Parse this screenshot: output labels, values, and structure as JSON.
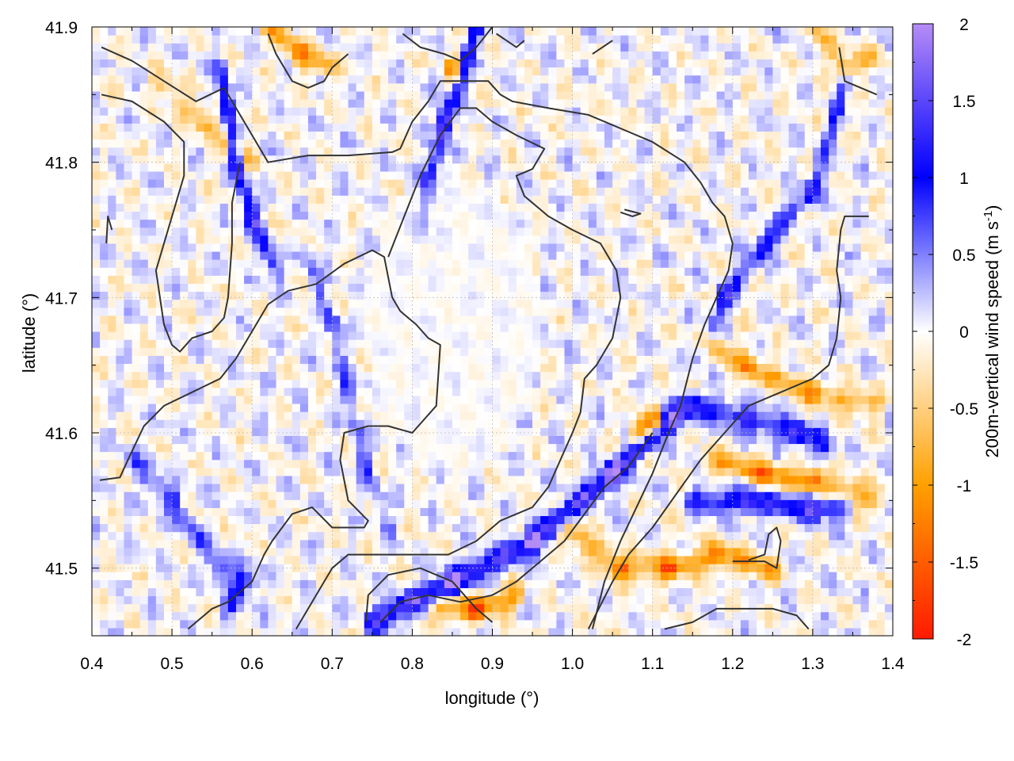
{
  "chart_data": {
    "type": "heatmap",
    "title": "",
    "xlabel": "longitude (°)",
    "ylabel": "latitude (°)",
    "colorbar_label_main": "200m-vertical wind speed (m s",
    "colorbar_label_sup": "-1",
    "colorbar_label_close": ")",
    "xlim": [
      0.4,
      1.4
    ],
    "ylim": [
      41.45,
      41.9
    ],
    "x_ticks": [
      0.4,
      0.5,
      0.6,
      0.7,
      0.8,
      0.9,
      1.0,
      1.1,
      1.2,
      1.3,
      1.4
    ],
    "x_tick_labels": [
      "0.4",
      "0.5",
      "0.6",
      "0.7",
      "0.8",
      "0.9",
      "1.0",
      "1.1",
      "1.2",
      "1.3",
      "1.4"
    ],
    "y_ticks": [
      41.5,
      41.6,
      41.7,
      41.8,
      41.9
    ],
    "y_tick_labels": [
      "41.5",
      "41.6",
      "41.7",
      "41.8",
      "41.9"
    ],
    "colorbar_range": [
      -2,
      2
    ],
    "colorbar_ticks": [
      2,
      1.5,
      1,
      0.5,
      0,
      -0.5,
      -1,
      -1.5,
      -2
    ],
    "colorbar_tick_labels": [
      "2",
      "1.5",
      "1",
      "0.5",
      "0",
      "-0.5",
      "-1",
      "-1.5",
      "-2"
    ],
    "colormap": [
      {
        "value": -2,
        "color": "#ff1a00"
      },
      {
        "value": -1,
        "color": "#ffa000"
      },
      {
        "value": 0,
        "color": "#ffffff"
      },
      {
        "value": 1,
        "color": "#0000ff"
      },
      {
        "value": 2,
        "color": "#b58cf5"
      }
    ],
    "grid": true,
    "contour_color": "#333333",
    "features": [
      {
        "name": "updraft-band-southeast",
        "value": 1.4,
        "path": [
          [
            0.75,
            41.46
          ],
          [
            0.85,
            41.49
          ],
          [
            0.95,
            41.52
          ],
          [
            1.05,
            41.57
          ],
          [
            1.12,
            41.61
          ],
          [
            1.15,
            41.62
          ]
        ]
      },
      {
        "name": "updraft-band-east",
        "value": 1.0,
        "path": [
          [
            1.15,
            41.55
          ],
          [
            1.22,
            41.55
          ],
          [
            1.3,
            41.545
          ],
          [
            1.34,
            41.545
          ]
        ]
      },
      {
        "name": "updraft-band-east-2",
        "value": 0.9,
        "path": [
          [
            1.16,
            41.62
          ],
          [
            1.22,
            41.61
          ],
          [
            1.28,
            41.6
          ],
          [
            1.32,
            41.59
          ]
        ]
      },
      {
        "name": "updraft-north-jet",
        "value": 1.2,
        "path": [
          [
            0.88,
            41.9
          ],
          [
            0.86,
            41.86
          ],
          [
            0.84,
            41.83
          ],
          [
            0.82,
            41.78
          ],
          [
            0.81,
            41.75
          ]
        ]
      },
      {
        "name": "updraft-nw-band",
        "value": 1.0,
        "path": [
          [
            0.56,
            41.87
          ],
          [
            0.57,
            41.84
          ],
          [
            0.58,
            41.8
          ],
          [
            0.6,
            41.76
          ],
          [
            0.63,
            41.72
          ]
        ]
      },
      {
        "name": "updraft-ne-band",
        "value": 0.8,
        "path": [
          [
            1.16,
            41.66
          ],
          [
            1.19,
            41.7
          ],
          [
            1.24,
            41.74
          ],
          [
            1.3,
            41.78
          ],
          [
            1.34,
            41.86
          ]
        ]
      },
      {
        "name": "updraft-west",
        "value": 0.6,
        "path": [
          [
            0.45,
            41.58
          ],
          [
            0.5,
            41.55
          ],
          [
            0.56,
            41.5
          ],
          [
            0.6,
            41.49
          ]
        ]
      },
      {
        "name": "updraft-sw-2",
        "value": 0.8,
        "path": [
          [
            0.57,
            41.47
          ],
          [
            0.59,
            41.49
          ]
        ]
      },
      {
        "name": "updraft-west-ridge",
        "value": 0.55,
        "path": [
          [
            0.67,
            41.73
          ],
          [
            0.7,
            41.68
          ],
          [
            0.72,
            41.63
          ],
          [
            0.74,
            41.58
          ],
          [
            0.77,
            41.53
          ]
        ]
      },
      {
        "name": "downdraft-band-southeast",
        "value": -0.9,
        "path": [
          [
            0.99,
            41.53
          ],
          [
            1.06,
            41.5
          ],
          [
            1.12,
            41.5
          ],
          [
            1.18,
            41.51
          ],
          [
            1.25,
            41.5
          ]
        ]
      },
      {
        "name": "downdraft-east",
        "value": -0.9,
        "path": [
          [
            1.17,
            41.58
          ],
          [
            1.24,
            41.57
          ],
          [
            1.3,
            41.565
          ],
          [
            1.38,
            41.55
          ]
        ]
      },
      {
        "name": "downdraft-east-2",
        "value": -0.75,
        "path": [
          [
            1.16,
            41.67
          ],
          [
            1.22,
            41.65
          ],
          [
            1.3,
            41.63
          ],
          [
            1.38,
            41.62
          ]
        ]
      },
      {
        "name": "downdraft-se-strong",
        "value": -1.5,
        "path": [
          [
            1.08,
            41.6
          ],
          [
            1.11,
            41.61
          ]
        ]
      },
      {
        "name": "downdraft-north",
        "value": -0.8,
        "path": [
          [
            0.62,
            41.9
          ],
          [
            0.66,
            41.88
          ],
          [
            0.7,
            41.87
          ]
        ]
      },
      {
        "name": "downdraft-north-2",
        "value": -1.4,
        "path": [
          [
            0.85,
            41.87
          ],
          [
            0.86,
            41.86
          ]
        ]
      },
      {
        "name": "downdraft-ne",
        "value": -0.6,
        "path": [
          [
            1.3,
            41.9
          ],
          [
            1.34,
            41.87
          ],
          [
            1.38,
            41.88
          ]
        ]
      },
      {
        "name": "downdraft-nw",
        "value": -0.55,
        "path": [
          [
            0.48,
            41.86
          ],
          [
            0.54,
            41.83
          ],
          [
            0.6,
            41.8
          ]
        ]
      },
      {
        "name": "downdraft-south",
        "value": -1.0,
        "path": [
          [
            0.83,
            41.47
          ],
          [
            0.88,
            41.47
          ],
          [
            0.93,
            41.48
          ]
        ]
      }
    ],
    "contours": [
      [
        [
          0.412,
          41.885
        ],
        [
          0.45,
          41.875
        ],
        [
          0.49,
          41.86
        ],
        [
          0.53,
          41.845
        ],
        [
          0.565,
          41.855
        ],
        [
          0.58,
          41.84
        ],
        [
          0.61,
          41.81
        ],
        [
          0.62,
          41.8
        ],
        [
          0.67,
          41.805
        ],
        [
          0.72,
          41.805
        ],
        [
          0.775,
          41.8075
        ],
        [
          0.785,
          41.81
        ],
        [
          0.8,
          41.83
        ],
        [
          0.82,
          41.845
        ],
        [
          0.835,
          41.86
        ],
        [
          0.86,
          41.86
        ],
        [
          0.895,
          41.86
        ],
        [
          0.91,
          41.85
        ],
        [
          0.925,
          41.845
        ],
        [
          0.97,
          41.84
        ],
        [
          1.02,
          41.835
        ],
        [
          1.06,
          41.825
        ],
        [
          1.1,
          41.815
        ],
        [
          1.14,
          41.8
        ],
        [
          1.16,
          41.785
        ],
        [
          1.175,
          41.77
        ],
        [
          1.19,
          41.76
        ],
        [
          1.2,
          41.74
        ],
        [
          1.195,
          41.72
        ],
        [
          1.18,
          41.7
        ],
        [
          1.165,
          41.68
        ],
        [
          1.15,
          41.655
        ],
        [
          1.135,
          41.62
        ],
        [
          1.12,
          41.6
        ],
        [
          1.1,
          41.57
        ],
        [
          1.08,
          41.545
        ],
        [
          1.06,
          41.52
        ],
        [
          1.04,
          41.49
        ],
        [
          1.025,
          41.455
        ]
      ],
      [
        [
          0.412,
          41.85
        ],
        [
          0.45,
          41.845
        ],
        [
          0.49,
          41.83
        ],
        [
          0.515,
          41.815
        ],
        [
          0.515,
          41.79
        ],
        [
          0.505,
          41.77
        ],
        [
          0.49,
          41.74
        ],
        [
          0.48,
          41.72
        ],
        [
          0.485,
          41.7
        ],
        [
          0.49,
          41.68
        ],
        [
          0.5,
          41.665
        ],
        [
          0.51,
          41.66
        ],
        [
          0.525,
          41.67
        ],
        [
          0.55,
          41.675
        ],
        [
          0.565,
          41.685
        ],
        [
          0.57,
          41.7
        ],
        [
          0.575,
          41.74
        ],
        [
          0.575,
          41.77
        ],
        [
          0.585,
          41.8
        ]
      ],
      [
        [
          0.41,
          41.565
        ],
        [
          0.435,
          41.567
        ],
        [
          0.445,
          41.58
        ],
        [
          0.465,
          41.605
        ],
        [
          0.49,
          41.62
        ],
        [
          0.525,
          41.63
        ],
        [
          0.56,
          41.64
        ],
        [
          0.58,
          41.655
        ],
        [
          0.6,
          41.675
        ],
        [
          0.62,
          41.695
        ],
        [
          0.645,
          41.705
        ],
        [
          0.68,
          41.71
        ],
        [
          0.715,
          41.725
        ],
        [
          0.75,
          41.735
        ],
        [
          0.765,
          41.73
        ],
        [
          0.775,
          41.7
        ],
        [
          0.785,
          41.69
        ],
        [
          0.805,
          41.68
        ],
        [
          0.82,
          41.67
        ],
        [
          0.835,
          41.665
        ],
        [
          0.83,
          41.62
        ],
        [
          0.8,
          41.6
        ],
        [
          0.77,
          41.605
        ],
        [
          0.745,
          41.605
        ],
        [
          0.715,
          41.6
        ],
        [
          0.71,
          41.58
        ],
        [
          0.72,
          41.55
        ],
        [
          0.745,
          41.535
        ],
        [
          0.74,
          41.53
        ],
        [
          0.7,
          41.53
        ],
        [
          0.675,
          41.545
        ],
        [
          0.65,
          41.54
        ],
        [
          0.625,
          41.52
        ],
        [
          0.615,
          41.51
        ],
        [
          0.6,
          41.49
        ],
        [
          0.57,
          41.475
        ],
        [
          0.55,
          41.47
        ],
        [
          0.52,
          41.455
        ]
      ],
      [
        [
          0.655,
          41.455
        ],
        [
          0.68,
          41.48
        ],
        [
          0.7,
          41.5
        ],
        [
          0.72,
          41.51
        ],
        [
          0.76,
          41.51
        ],
        [
          0.8,
          41.51
        ],
        [
          0.845,
          41.51
        ],
        [
          0.88,
          41.52
        ],
        [
          0.91,
          41.535
        ],
        [
          0.95,
          41.545
        ],
        [
          0.97,
          41.56
        ],
        [
          0.985,
          41.58
        ],
        [
          1.0,
          41.6
        ],
        [
          1.01,
          41.615
        ],
        [
          1.015,
          41.64
        ],
        [
          1.03,
          41.65
        ],
        [
          1.05,
          41.67
        ],
        [
          1.06,
          41.7
        ],
        [
          1.055,
          41.72
        ],
        [
          1.035,
          41.74
        ],
        [
          1.0,
          41.75
        ],
        [
          0.97,
          41.76
        ],
        [
          0.94,
          41.775
        ],
        [
          0.93,
          41.79
        ],
        [
          0.95,
          41.795
        ],
        [
          0.965,
          41.81
        ],
        [
          0.93,
          41.82
        ],
        [
          0.9,
          41.83
        ],
        [
          0.88,
          41.84
        ],
        [
          0.86,
          41.84
        ],
        [
          0.835,
          41.82
        ],
        [
          0.81,
          41.79
        ],
        [
          0.79,
          41.76
        ],
        [
          0.77,
          41.73
        ]
      ],
      [
        [
          0.742,
          41.46
        ],
        [
          0.745,
          41.48
        ],
        [
          0.77,
          41.495
        ],
        [
          0.81,
          41.5
        ],
        [
          0.85,
          41.49
        ],
        [
          0.88,
          41.47
        ],
        [
          0.9,
          41.46
        ]
      ],
      [
        [
          0.76,
          41.46
        ],
        [
          0.785,
          41.475
        ],
        [
          0.82,
          41.48
        ],
        [
          0.86,
          41.475
        ],
        [
          0.9,
          41.48
        ],
        [
          0.93,
          41.49
        ],
        [
          0.96,
          41.505
        ],
        [
          0.99,
          41.52
        ],
        [
          1.015,
          41.54
        ],
        [
          1.04,
          41.56
        ],
        [
          1.07,
          41.575
        ],
        [
          1.1,
          41.6
        ]
      ],
      [
        [
          1.02,
          41.455
        ],
        [
          1.05,
          41.49
        ],
        [
          1.07,
          41.51
        ],
        [
          1.1,
          41.53
        ],
        [
          1.13,
          41.555
        ],
        [
          1.16,
          41.58
        ],
        [
          1.19,
          41.6
        ],
        [
          1.22,
          41.62
        ],
        [
          1.26,
          41.63
        ],
        [
          1.3,
          41.64
        ],
        [
          1.32,
          41.65
        ],
        [
          1.33,
          41.67
        ],
        [
          1.335,
          41.7
        ],
        [
          1.33,
          41.72
        ],
        [
          1.335,
          41.75
        ],
        [
          1.34,
          41.76
        ],
        [
          1.37,
          41.76
        ]
      ],
      [
        [
          1.115,
          41.455
        ],
        [
          1.15,
          41.46
        ],
        [
          1.18,
          41.47
        ],
        [
          1.22,
          41.47
        ],
        [
          1.25,
          41.47
        ],
        [
          1.28,
          41.465
        ],
        [
          1.295,
          41.455
        ]
      ],
      [
        [
          1.2,
          41.505
        ],
        [
          1.24,
          41.505
        ],
        [
          1.255,
          41.5
        ],
        [
          1.26,
          41.52
        ],
        [
          1.255,
          41.53
        ],
        [
          1.245,
          41.525
        ],
        [
          1.24,
          41.51
        ],
        [
          1.22,
          41.506
        ]
      ],
      [
        [
          0.62,
          41.895
        ],
        [
          0.63,
          41.88
        ],
        [
          0.65,
          41.86
        ],
        [
          0.67,
          41.855
        ],
        [
          0.69,
          41.86
        ],
        [
          0.7,
          41.87
        ],
        [
          0.71,
          41.875
        ],
        [
          0.72,
          41.88
        ]
      ],
      [
        [
          0.788,
          41.895
        ],
        [
          0.81,
          41.885
        ],
        [
          0.84,
          41.88
        ],
        [
          0.86,
          41.875
        ],
        [
          0.88,
          41.885
        ],
        [
          0.9,
          41.9
        ]
      ],
      [
        [
          0.905,
          41.895
        ],
        [
          0.93,
          41.885
        ],
        [
          0.94,
          41.89
        ]
      ],
      [
        [
          1.025,
          41.88
        ],
        [
          1.05,
          41.89
        ]
      ],
      [
        [
          1.333,
          41.885
        ],
        [
          1.34,
          41.86
        ],
        [
          1.36,
          41.855
        ],
        [
          1.38,
          41.85
        ]
      ],
      [
        [
          1.065,
          41.765
        ],
        [
          1.085,
          41.762
        ],
        [
          1.075,
          41.76
        ],
        [
          1.06,
          41.763
        ]
      ],
      [
        [
          0.418,
          41.74
        ],
        [
          0.42,
          41.76
        ],
        [
          0.425,
          41.75
        ]
      ]
    ]
  }
}
